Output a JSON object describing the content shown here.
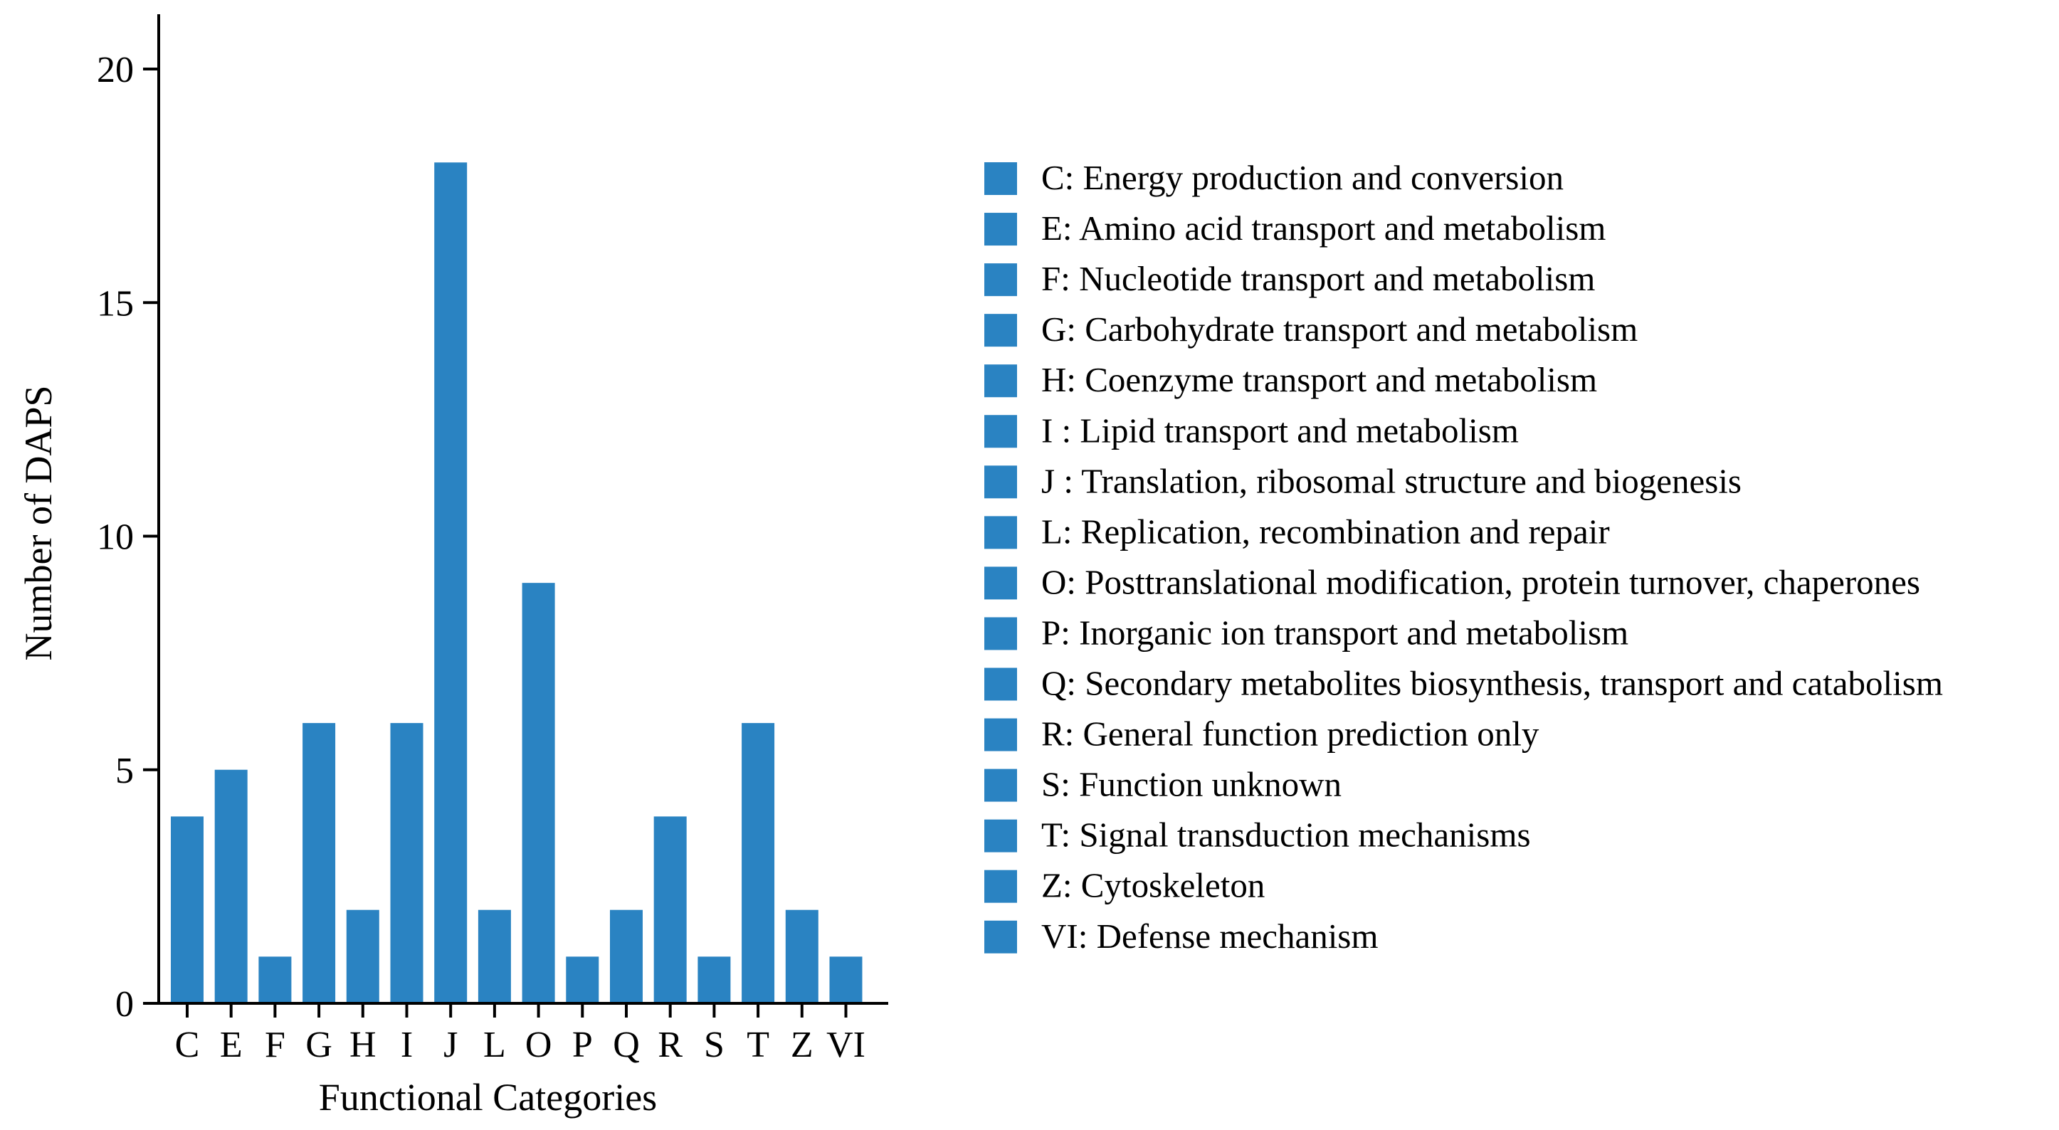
{
  "chart_data": {
    "type": "bar",
    "title": "",
    "xlabel": "Functional Categories",
    "ylabel": "Number of DAPS",
    "ylim": [
      0,
      21
    ],
    "yticks": [
      0,
      5,
      10,
      15,
      20
    ],
    "grid": false,
    "legend_position": "right",
    "categories": [
      "C",
      "E",
      "F",
      "G",
      "H",
      "I",
      "J",
      "L",
      "O",
      "P",
      "Q",
      "R",
      "S",
      "T",
      "Z",
      "VI"
    ],
    "values": [
      4,
      5,
      1,
      6,
      2,
      6,
      18,
      2,
      9,
      1,
      2,
      4,
      1,
      6,
      2,
      1
    ],
    "bar_color": "#2a83c2",
    "legend": [
      "C: Energy production and conversion",
      "E: Amino acid transport and metabolism",
      "F: Nucleotide transport and metabolism",
      "G: Carbohydrate transport and metabolism",
      "H: Coenzyme transport and metabolism",
      "I : Lipid transport and metabolism",
      "J : Translation, ribosomal structure and biogenesis",
      "L: Replication, recombination and repair",
      "O: Posttranslational modification, protein turnover, chaperones",
      "P: Inorganic ion transport and metabolism",
      "Q: Secondary metabolites biosynthesis,  transport and  catabolism",
      "R: General function prediction only",
      "S: Function unknown",
      "T: Signal transduction mechanisms",
      "Z: Cytoskeleton",
      "VI: Defense mechanism"
    ]
  }
}
